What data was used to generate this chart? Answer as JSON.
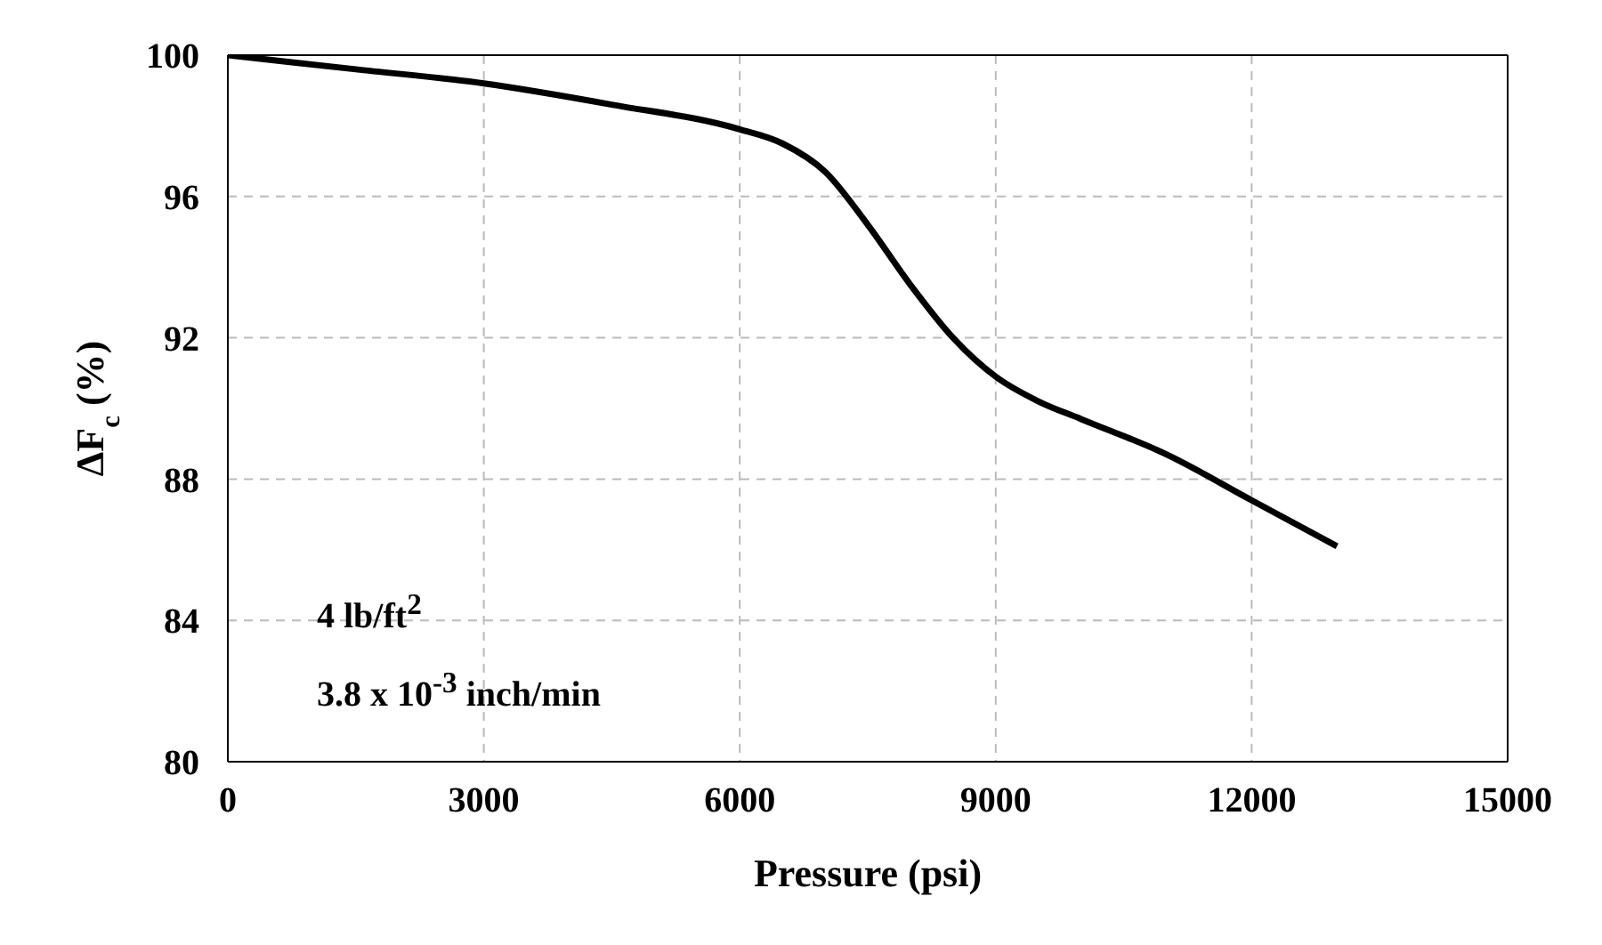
{
  "chart_data": {
    "type": "line",
    "xlabel": "Pressure (psi)",
    "ylabel": "ΔF$_{c}$ (%)",
    "x": [
      0,
      1500,
      3000,
      4500,
      6000,
      6500,
      7000,
      7500,
      8000,
      8500,
      9000,
      9500,
      10000,
      11000,
      12000,
      13000
    ],
    "series": [
      {
        "color": "#000000",
        "values": [
          100,
          99.6,
          99.2,
          98.6,
          97.9,
          97.5,
          96.7,
          95.2,
          93.5,
          92.0,
          90.9,
          90.2,
          89.7,
          88.7,
          87.4,
          86.1
        ]
      }
    ],
    "xlim": [
      0,
      15000
    ],
    "xticks": [
      0,
      3000,
      6000,
      9000,
      12000,
      15000
    ],
    "ylim": [
      80,
      100
    ],
    "yticks": [
      80,
      84,
      88,
      92,
      96,
      100
    ],
    "grid": true,
    "marker": "none",
    "line_style": "solid",
    "annotations": [
      "4 lb/ft$^{2}$",
      "3.8 x 10$^{-3}$ inch/min"
    ]
  }
}
